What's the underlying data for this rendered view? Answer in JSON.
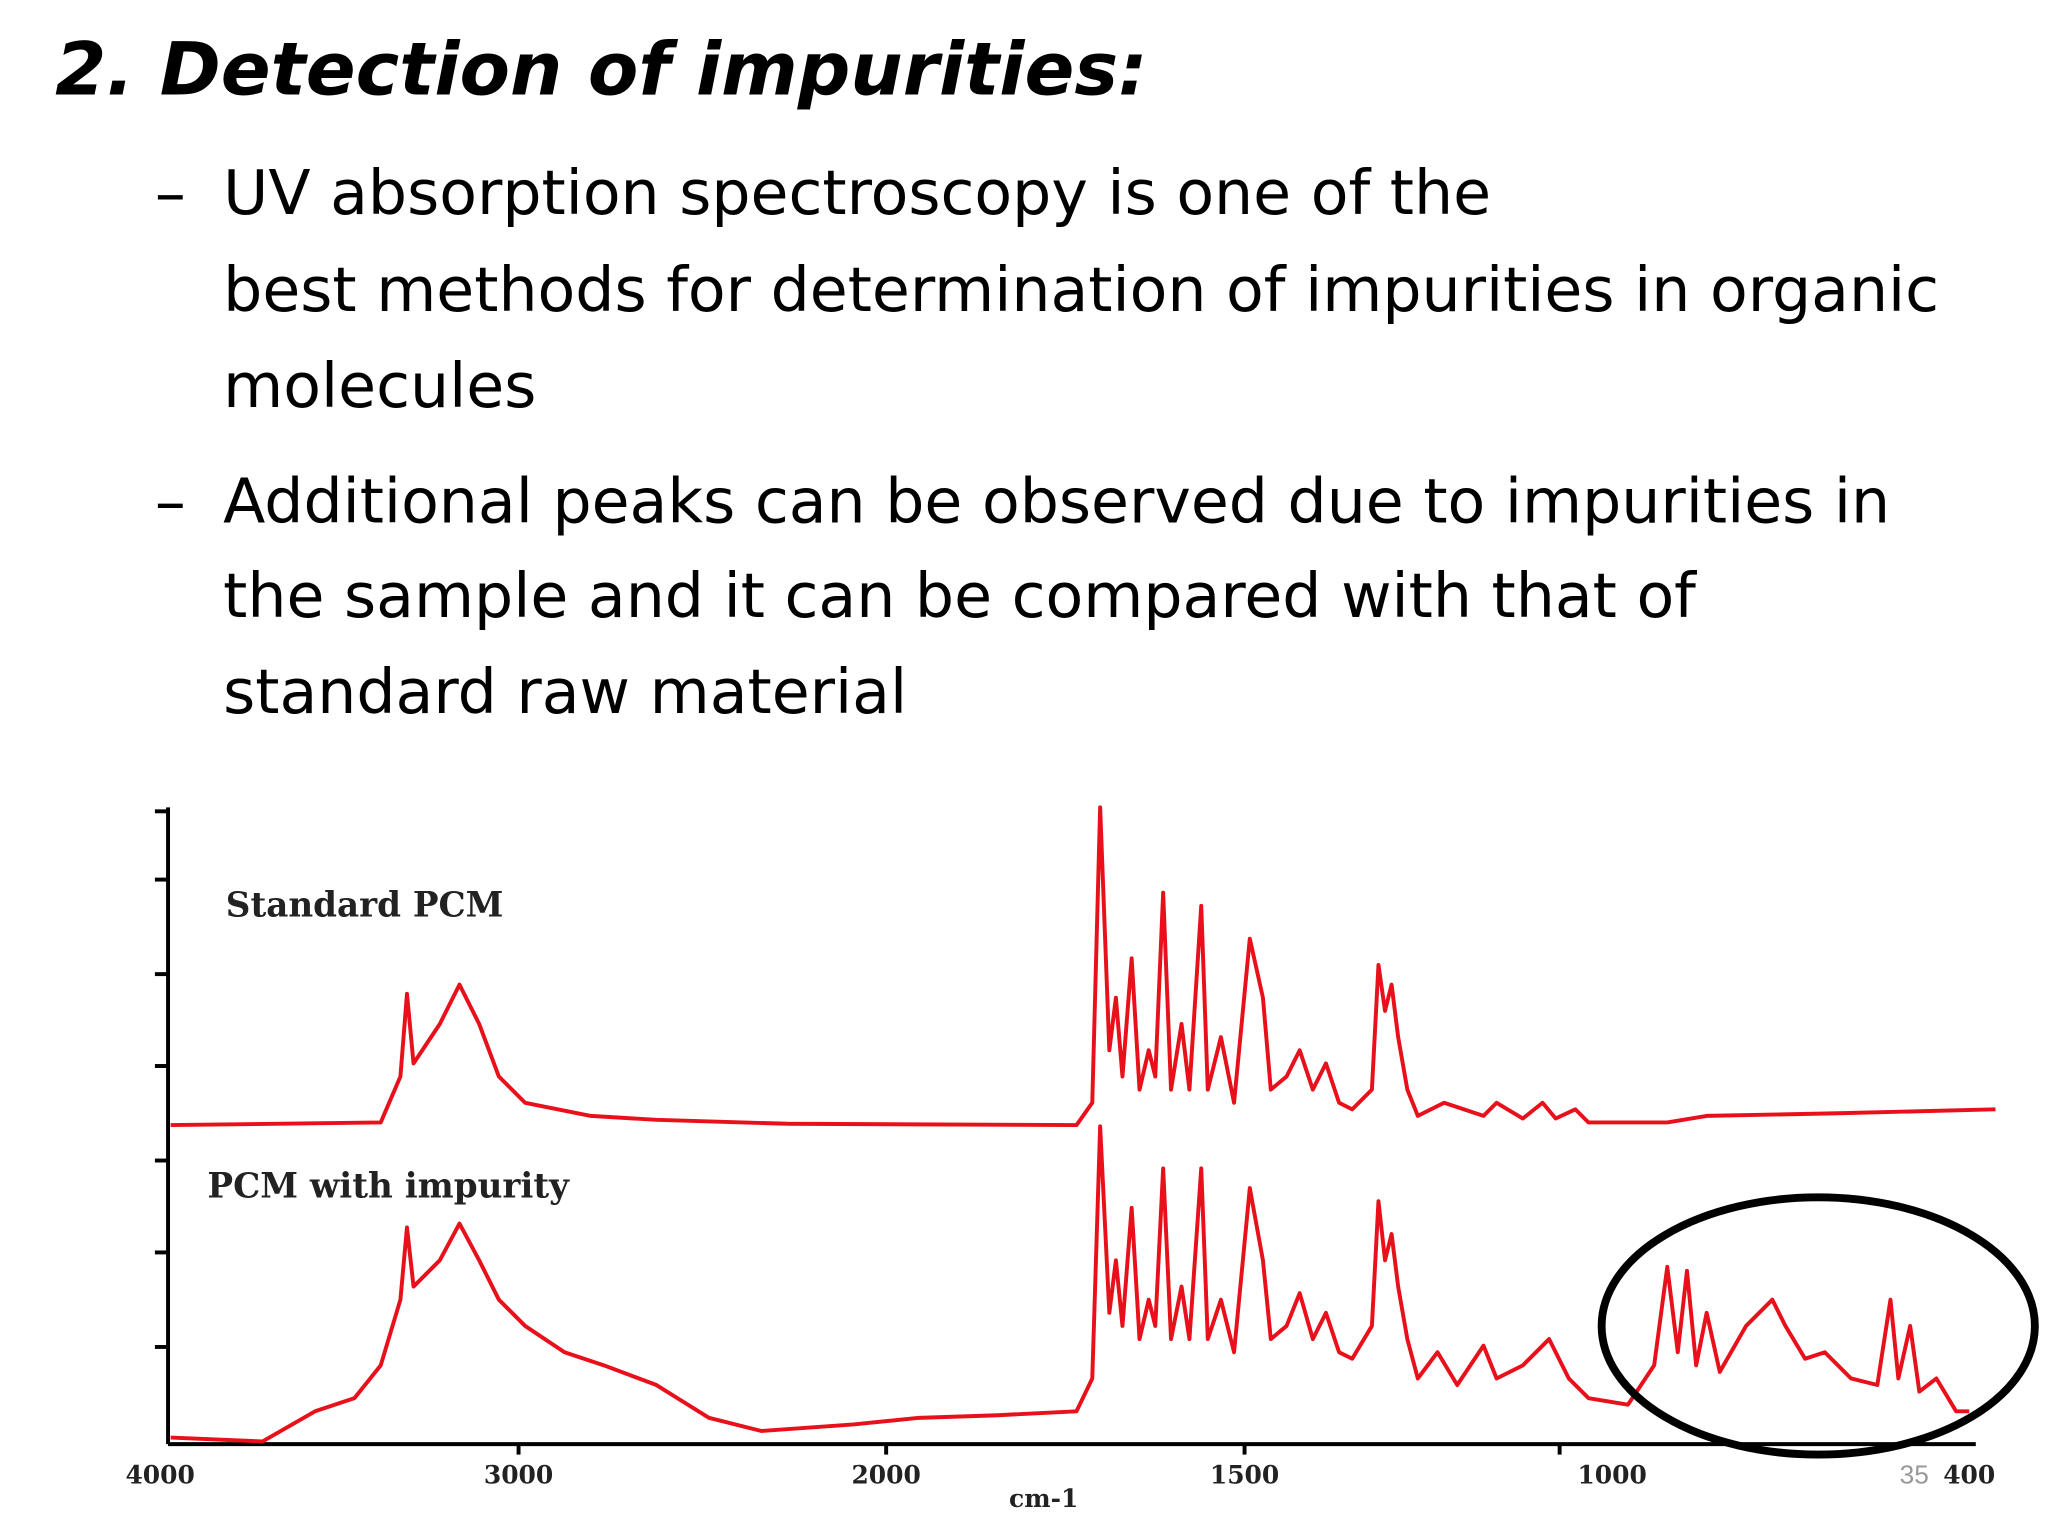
{
  "title": "2. Detection of impurities:",
  "bullet_marker": "–",
  "bullets": [
    {
      "lines": [
        "UV absorption spectroscopy is one of the",
        "best methods for determination of impurities in organic",
        "molecules"
      ]
    },
    {
      "lines": [
        "Additional peaks can be observed due to impurities in",
        "the sample and it can be compared with that of",
        "standard raw material"
      ]
    }
  ],
  "figure": {
    "labels": [
      "Standard PCM",
      "PCM with impurity"
    ],
    "xticks": [
      4000,
      3000,
      2000,
      1500,
      1000,
      400
    ],
    "xlabel": "cm-1"
  },
  "page_number": "35"
}
